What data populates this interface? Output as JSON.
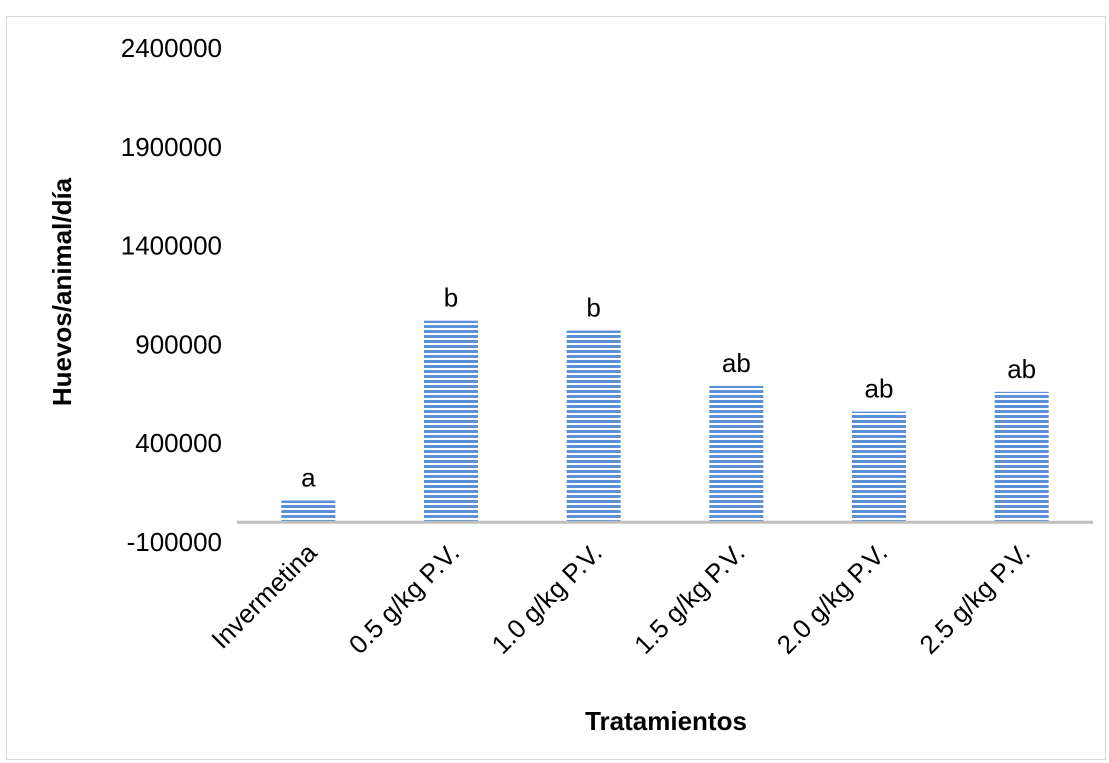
{
  "chart_data": {
    "type": "bar",
    "title": "",
    "xlabel": "Tratamientos",
    "ylabel": "Huevos/animal/día",
    "categories": [
      "Invermetina",
      "0.5 g/kg P.V.",
      "1.0 g/kg P.V.",
      "1.5 g/kg P.V.",
      "2.0 g/kg P.V.",
      "2.5 g/kg P.V."
    ],
    "values": [
      110000,
      1020000,
      970000,
      690000,
      560000,
      660000
    ],
    "data_labels": [
      "a",
      "b",
      "b",
      "ab",
      "ab",
      "ab"
    ],
    "ylim": [
      -100000,
      2400000
    ],
    "yticks": [
      -100000,
      400000,
      900000,
      1400000,
      1900000,
      2400000
    ],
    "ytick_labels": [
      "-100000",
      "400000",
      "900000",
      "1400000",
      "1900000",
      "2400000"
    ],
    "grid": false,
    "legend": "none",
    "colors": {
      "bar_stripe": "#5b8fd6",
      "bar_background": "#ffffff",
      "baseline": "#bfbfbf"
    }
  }
}
